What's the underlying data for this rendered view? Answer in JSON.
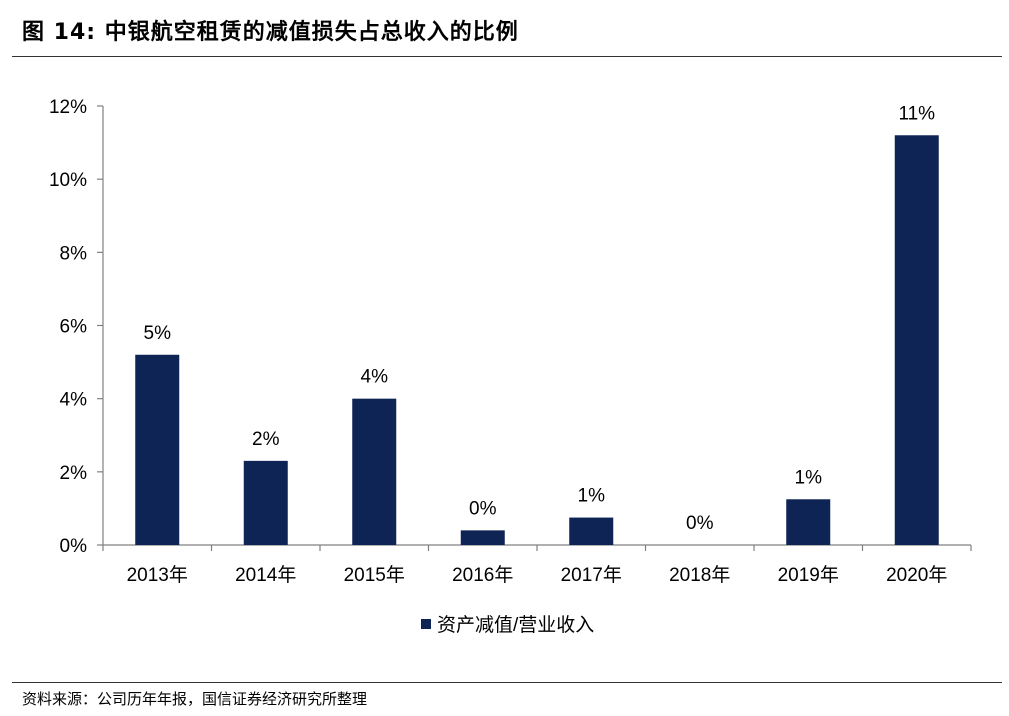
{
  "figure": {
    "title": "图 14:  中银航空租赁的减值损失占总收入的比例",
    "source": "资料来源：公司历年年报，国信证券经济研究所整理"
  },
  "chart_data": {
    "type": "bar",
    "title": "",
    "xlabel": "",
    "ylabel": "",
    "categories": [
      "2013年",
      "2014年",
      "2015年",
      "2016年",
      "2017年",
      "2018年",
      "2019年",
      "2020年"
    ],
    "series": [
      {
        "name": "资产减值/营业收入",
        "values": [
          5.2,
          2.3,
          4.0,
          0.4,
          0.75,
          0.0,
          1.25,
          11.2
        ],
        "data_labels": [
          "5%",
          "2%",
          "4%",
          "0%",
          "1%",
          "0%",
          "1%",
          "11%"
        ],
        "color": "#0d2454"
      }
    ],
    "ylim": [
      0,
      12
    ],
    "yticks": [
      0,
      2,
      4,
      6,
      8,
      10,
      12
    ],
    "ytick_labels": [
      "0%",
      "2%",
      "4%",
      "6%",
      "8%",
      "10%",
      "12%"
    ],
    "grid": false,
    "legend": "bottom-center"
  }
}
